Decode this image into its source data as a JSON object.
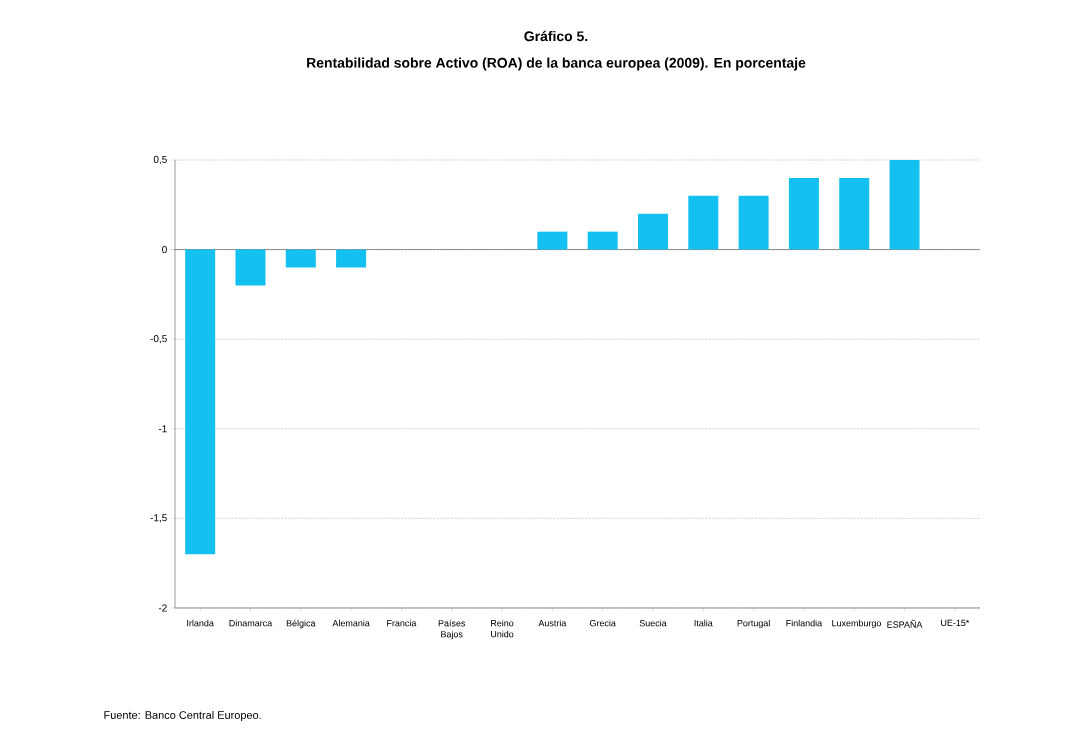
{
  "chart_data": {
    "type": "bar",
    "title": "Gráfico 5.",
    "subtitle": "Rentabilidad sobre Activo (ROA) de la banca europea (2009). En porcentaje",
    "categories": [
      "Irlanda",
      "Dinamarca",
      "Bélgica",
      "Alemania",
      "Francia",
      "Países Bajos",
      "Reino Unido",
      "Austria",
      "Grecia",
      "Suecia",
      "Italia",
      "Portugal",
      "Finlandia",
      "Luxemburgo",
      "ESPAÑA",
      "UE-15*"
    ],
    "values": [
      -1.7,
      -0.2,
      -0.1,
      -0.1,
      0,
      0,
      0,
      0.1,
      0.1,
      0.2,
      0.3,
      0.3,
      0.4,
      0.4,
      0.5,
      0
    ],
    "color": "#14c0f0",
    "ylim": [
      -2,
      0.5
    ],
    "yticks": [
      {
        "value": -2,
        "label": "-2"
      },
      {
        "value": -1.5,
        "label": "-1,5"
      },
      {
        "value": -1,
        "label": "-1"
      },
      {
        "value": -0.5,
        "label": "-0,5"
      },
      {
        "value": 0,
        "label": "0"
      },
      {
        "value": 0.5,
        "label": "0,5"
      }
    ],
    "grid": "y",
    "annotations": [
      "Fuente: Banco Central Europeo."
    ]
  }
}
